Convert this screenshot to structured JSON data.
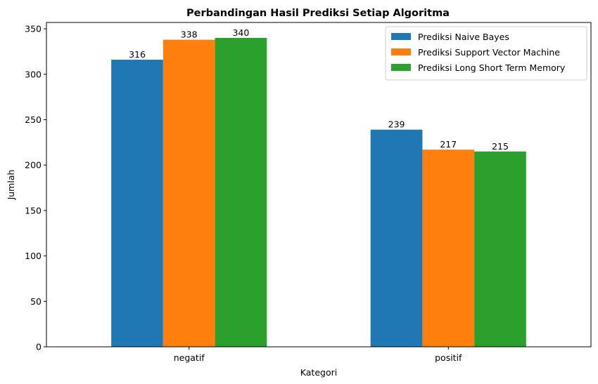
{
  "chart_data": {
    "type": "bar",
    "title": "Perbandingan Hasil Prediksi Setiap Algoritma",
    "xlabel": "Kategori",
    "ylabel": "Jumlah",
    "categories": [
      "negatif",
      "positif"
    ],
    "series": [
      {
        "name": "Prediksi Naive Bayes",
        "values": [
          316,
          239
        ],
        "color": "#1f77b4"
      },
      {
        "name": "Prediksi Support Vector Machine",
        "values": [
          338,
          217
        ],
        "color": "#ff7f0e"
      },
      {
        "name": "Prediksi Long Short Term Memory",
        "values": [
          340,
          215
        ],
        "color": "#2ca02c"
      }
    ],
    "ylim": [
      0,
      357
    ],
    "yticks": [
      0,
      50,
      100,
      150,
      200,
      250,
      300,
      350
    ],
    "grid": false,
    "legend_position": "top-right"
  }
}
